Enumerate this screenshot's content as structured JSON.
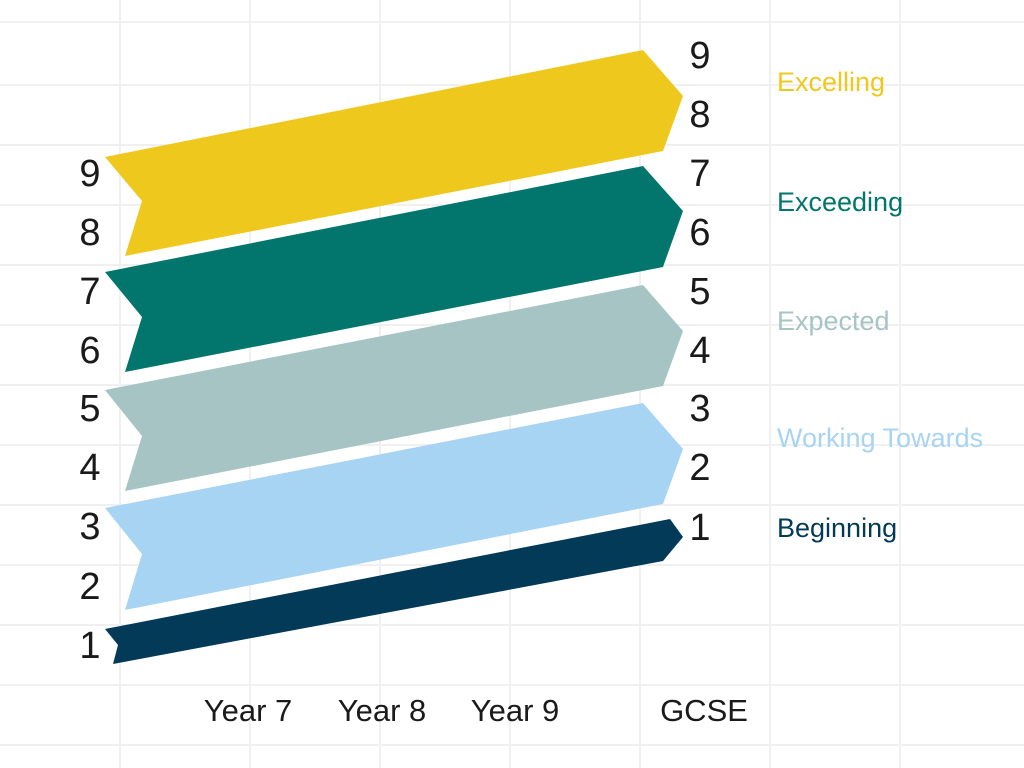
{
  "left_grades": [
    "9",
    "8",
    "7",
    "6",
    "5",
    "4",
    "3",
    "2",
    "1"
  ],
  "right_grades": [
    "9",
    "8",
    "7",
    "6",
    "5",
    "4",
    "3",
    "2",
    "1"
  ],
  "stages": [
    "Year 7",
    "Year 8",
    "Year 9",
    "GCSE"
  ],
  "bands": [
    {
      "id": "excelling",
      "label": "Excelling",
      "color": "#EFC81E",
      "grades_start": [
        "9",
        "8"
      ],
      "grades_end": [
        "9",
        "8"
      ]
    },
    {
      "id": "exceeding",
      "label": "Exceeding",
      "color": "#02766C",
      "grades_start": [
        "7",
        "6"
      ],
      "grades_end": [
        "7",
        "6"
      ]
    },
    {
      "id": "expected",
      "label": "Expected",
      "color": "#A5C4C3",
      "grades_start": [
        "5",
        "4"
      ],
      "grades_end": [
        "5",
        "4"
      ]
    },
    {
      "id": "working-towards",
      "label": "Working Towards",
      "color": "#A8D4F4",
      "grades_start": [
        "3",
        "2"
      ],
      "grades_end": [
        "3",
        "2"
      ]
    },
    {
      "id": "beginning",
      "label": "Beginning",
      "color": "#023A57",
      "grades_start": [
        "1"
      ],
      "grades_end": [
        "1"
      ]
    }
  ],
  "grid_color": "#F0F0F0"
}
